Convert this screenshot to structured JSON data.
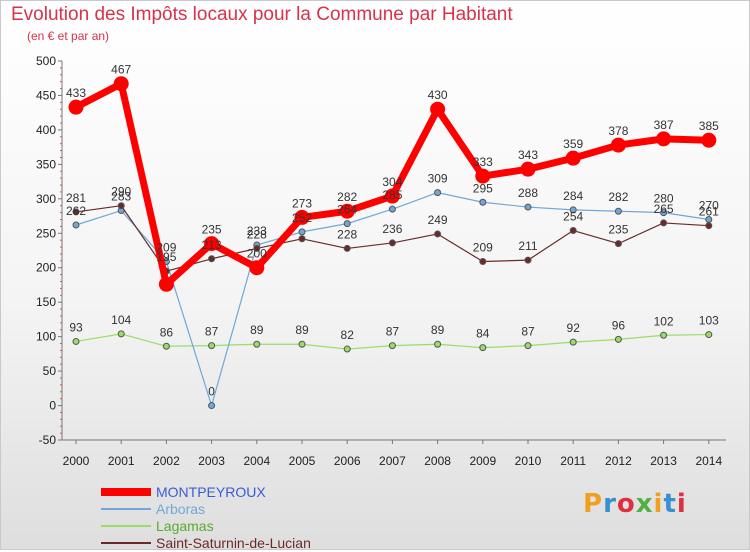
{
  "header": {
    "title": "Evolution des Impôts locaux pour la Commune par Habitant",
    "subtitle": "(en € et par an)"
  },
  "logo": {
    "text": "Proxiti",
    "colors": [
      "#f0a020",
      "#3a8fd0",
      "#e03040",
      "#50b040"
    ]
  },
  "chart_data": {
    "type": "line",
    "title": "Evolution des Impôts locaux pour la Commune par Habitant",
    "subtitle": "(en € et par an)",
    "xlabel": "",
    "ylabel": "",
    "categories": [
      "2000",
      "2001",
      "2002",
      "2003",
      "2004",
      "2005",
      "2006",
      "2007",
      "2008",
      "2009",
      "2010",
      "2011",
      "2012",
      "2013",
      "2014"
    ],
    "yticks": [
      -50,
      0,
      50,
      100,
      150,
      200,
      250,
      300,
      350,
      400,
      450,
      500
    ],
    "ylim": [
      -50,
      500
    ],
    "grid": false,
    "legend_position": "bottom-left",
    "series": [
      {
        "name": "MONTPEYROUX",
        "color": "#ff0000",
        "values": [
          433,
          467,
          176,
          235,
          200,
          273,
          282,
          304,
          430,
          333,
          343,
          359,
          378,
          387,
          385
        ],
        "labels": [
          "433",
          "467",
          "",
          "235",
          "200",
          "273",
          "282",
          "304",
          "430",
          "333",
          "343",
          "359",
          "378",
          "387",
          "385"
        ]
      },
      {
        "name": "Arboras",
        "color": "#6fa8d8",
        "values": [
          262,
          283,
          209,
          0,
          233,
          252,
          264,
          285,
          309,
          295,
          288,
          284,
          282,
          280,
          270
        ],
        "labels": [
          "262",
          "283",
          "209",
          "0",
          "233",
          "252",
          "264",
          "285",
          "309",
          "295",
          "288",
          "284",
          "282",
          "280",
          "270"
        ]
      },
      {
        "name": "Lagamas",
        "color": "#99dd66",
        "values": [
          93,
          104,
          86,
          87,
          89,
          89,
          82,
          87,
          89,
          84,
          87,
          92,
          96,
          102,
          103
        ],
        "labels": [
          "93",
          "104",
          "86",
          "87",
          "89",
          "89",
          "82",
          "87",
          "89",
          "84",
          "87",
          "92",
          "96",
          "102",
          "103"
        ]
      },
      {
        "name": "Saint-Saturnin-de-Lucian",
        "color": "#6b2a2a",
        "values": [
          281,
          290,
          195,
          213,
          228,
          242,
          228,
          236,
          249,
          209,
          211,
          254,
          235,
          265,
          261
        ],
        "labels": [
          "281",
          "290",
          "195",
          "213",
          "228",
          "",
          "228",
          "236",
          "249",
          "209",
          "211",
          "254",
          "235",
          "265",
          "261"
        ]
      }
    ]
  }
}
